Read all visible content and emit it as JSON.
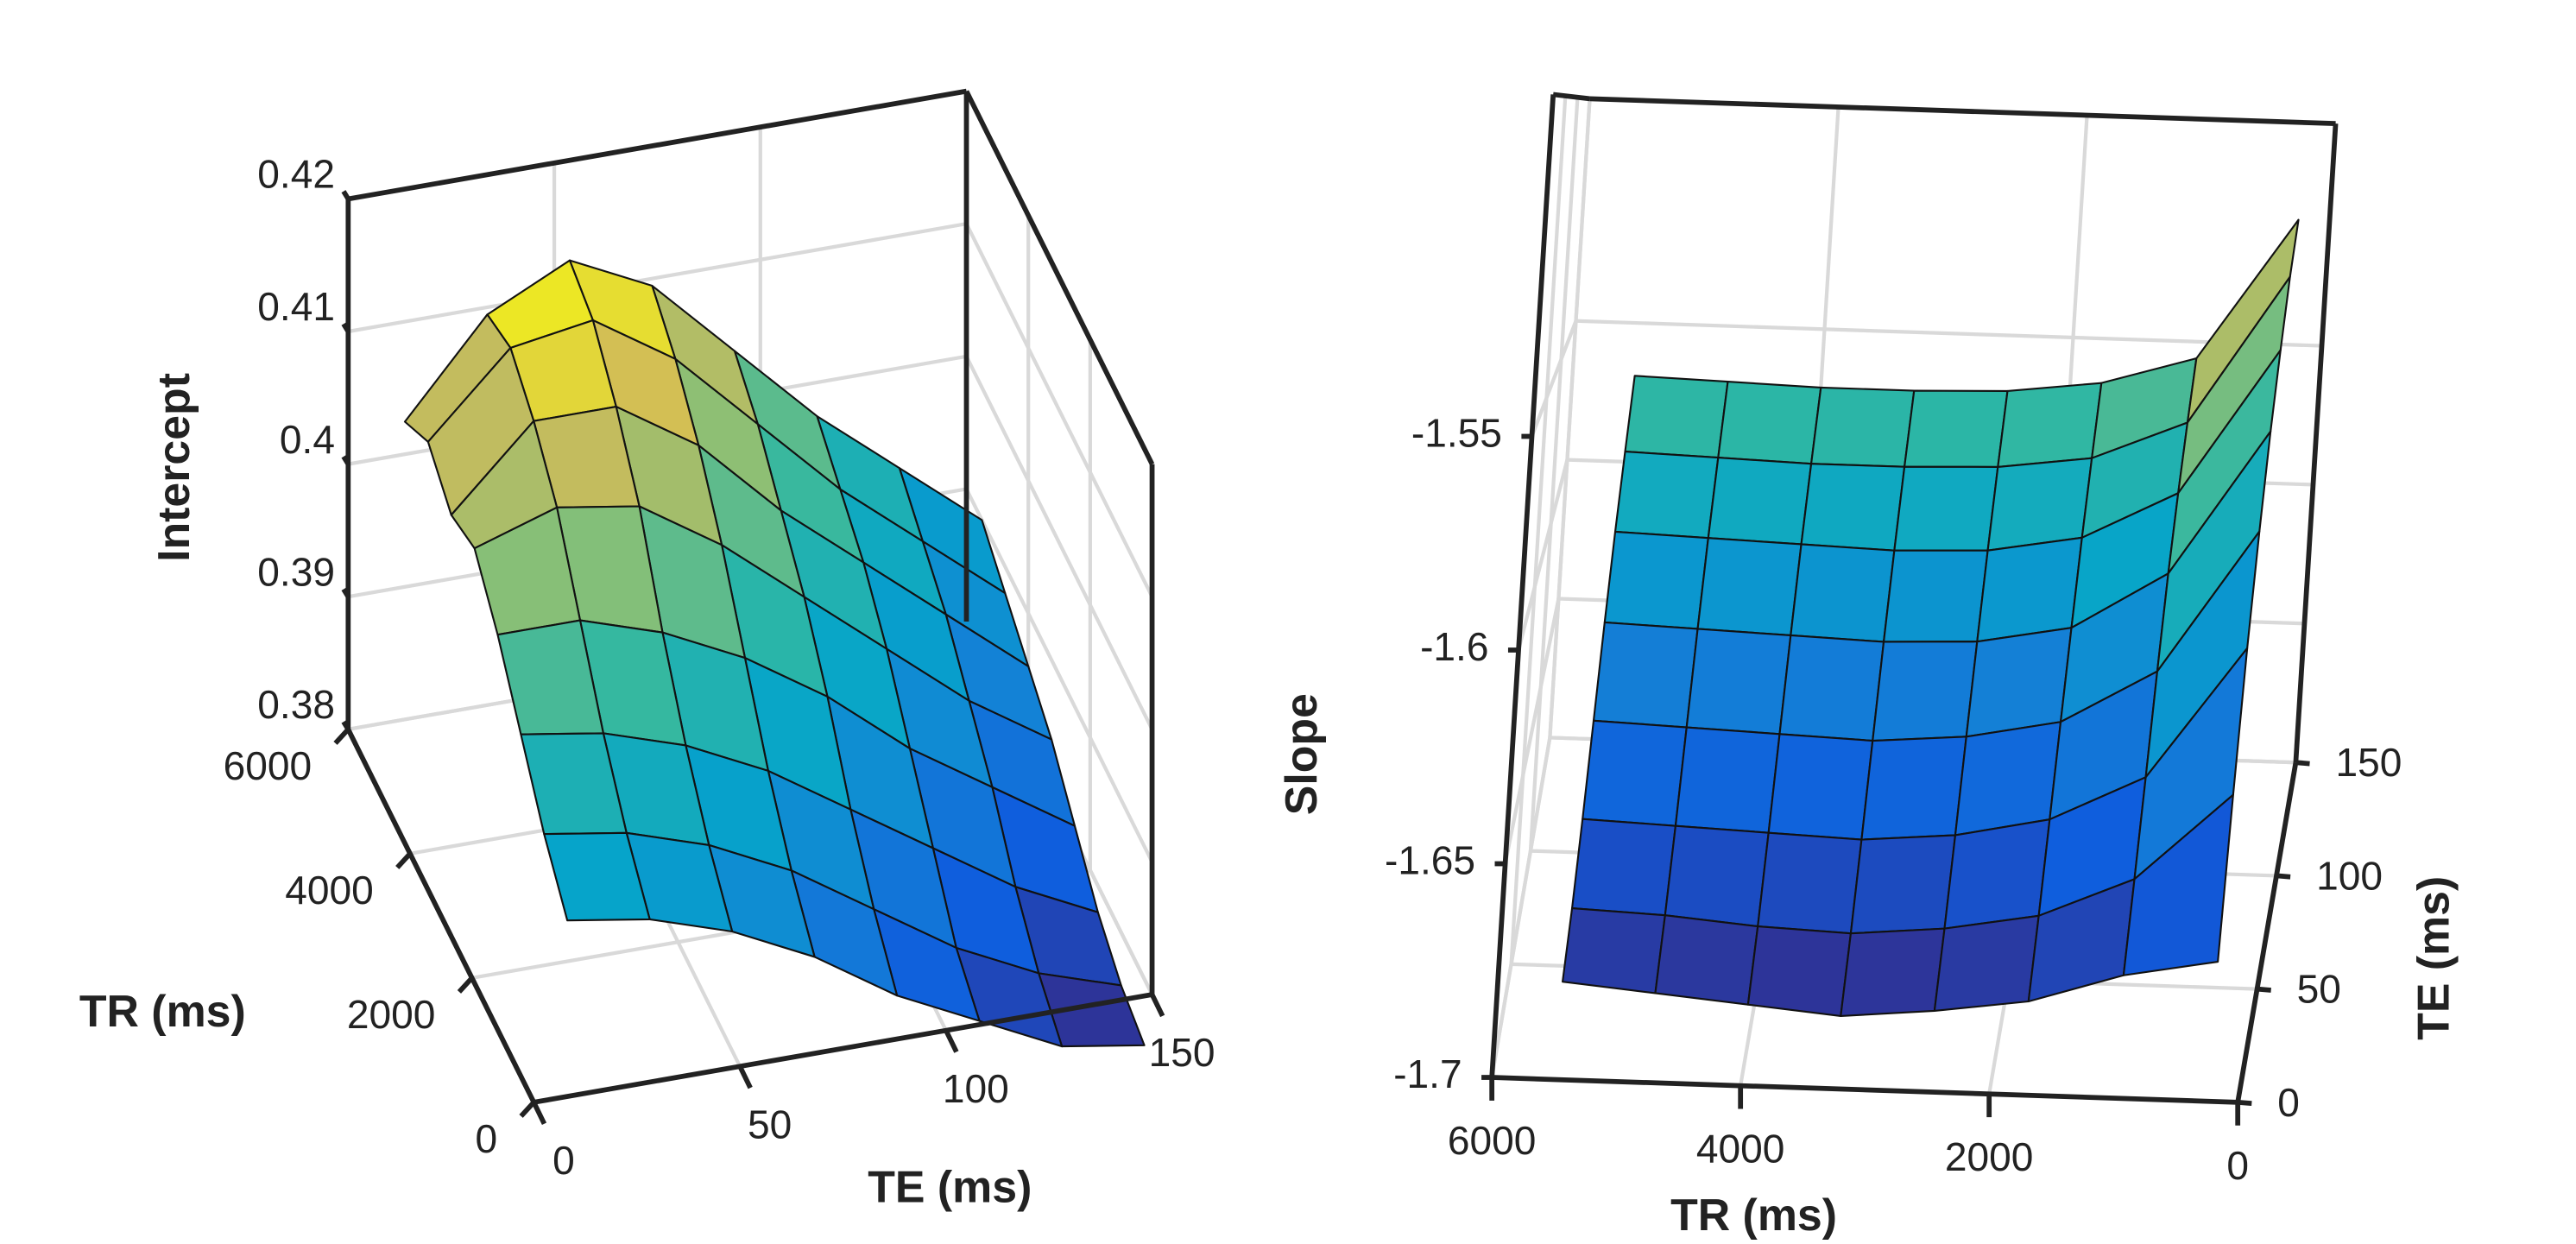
{
  "chart_data": [
    {
      "type": "surface",
      "colormap": "parula",
      "xlabel": "TE (ms)",
      "ylabel": "TR (ms)",
      "zlabel": "Intercept",
      "x": [
        10,
        30,
        50,
        70,
        90,
        110,
        130,
        150
      ],
      "y": [
        250,
        1000,
        1750,
        2500,
        3250,
        4000,
        4750,
        5500
      ],
      "z": [
        [
          0.392,
          0.391,
          0.389,
          0.386,
          0.382,
          0.379,
          0.376,
          0.375
        ],
        [
          0.395,
          0.394,
          0.392,
          0.389,
          0.385,
          0.381,
          0.378,
          0.376
        ],
        [
          0.399,
          0.398,
          0.396,
          0.393,
          0.389,
          0.385,
          0.381,
          0.378
        ],
        [
          0.403,
          0.403,
          0.401,
          0.398,
          0.394,
          0.389,
          0.385,
          0.381
        ],
        [
          0.406,
          0.408,
          0.407,
          0.403,
          0.398,
          0.393,
          0.388,
          0.384
        ],
        [
          0.405,
          0.411,
          0.411,
          0.407,
          0.401,
          0.396,
          0.391,
          0.386
        ],
        [
          0.407,
          0.413,
          0.414,
          0.41,
          0.404,
          0.398,
          0.393,
          0.388
        ],
        [
          0.405,
          0.412,
          0.415,
          0.412,
          0.406,
          0.4,
          0.395,
          0.39
        ]
      ],
      "xlim": [
        0,
        150
      ],
      "ylim": [
        0,
        6000
      ],
      "zlim": [
        0.38,
        0.42
      ],
      "xticks": [
        0,
        50,
        100,
        150
      ],
      "yticks": [
        0,
        2000,
        4000,
        6000
      ],
      "zticks": [
        0.38,
        0.39,
        0.4,
        0.41,
        0.42
      ],
      "grid": true
    },
    {
      "type": "surface",
      "colormap": "parula",
      "xlabel": "TR (ms)",
      "ylabel": "TE (ms)",
      "zlabel": "Slope",
      "x": [
        250,
        1000,
        1750,
        2500,
        3250,
        4000,
        4750,
        5500
      ],
      "y": [
        10,
        30,
        50,
        70,
        90,
        110,
        130,
        150
      ],
      "z": [
        [
          -1.672,
          -1.676,
          -1.683,
          -1.686,
          -1.688,
          -1.686,
          -1.684,
          -1.682
        ],
        [
          -1.64,
          -1.662,
          -1.672,
          -1.676,
          -1.678,
          -1.677,
          -1.675,
          -1.674
        ],
        [
          -1.61,
          -1.645,
          -1.657,
          -1.662,
          -1.664,
          -1.663,
          -1.662,
          -1.661
        ],
        [
          -1.585,
          -1.625,
          -1.64,
          -1.645,
          -1.647,
          -1.646,
          -1.645,
          -1.644
        ],
        [
          -1.562,
          -1.605,
          -1.622,
          -1.627,
          -1.628,
          -1.627,
          -1.626,
          -1.625
        ],
        [
          -1.542,
          -1.588,
          -1.603,
          -1.608,
          -1.609,
          -1.608,
          -1.607,
          -1.606
        ],
        [
          -1.522,
          -1.572,
          -1.585,
          -1.589,
          -1.59,
          -1.59,
          -1.589,
          -1.588
        ],
        [
          -1.505,
          -1.556,
          -1.566,
          -1.57,
          -1.571,
          -1.571,
          -1.57,
          -1.569
        ]
      ],
      "xlim": [
        0,
        6000
      ],
      "ylim": [
        0,
        150
      ],
      "zlim": [
        -1.7,
        -1.47
      ],
      "xticks": [
        0,
        2000,
        4000,
        6000
      ],
      "yticks": [
        0,
        50,
        100,
        150
      ],
      "zticks": [
        -1.7,
        -1.65,
        -1.6,
        -1.55
      ],
      "grid": true
    }
  ]
}
